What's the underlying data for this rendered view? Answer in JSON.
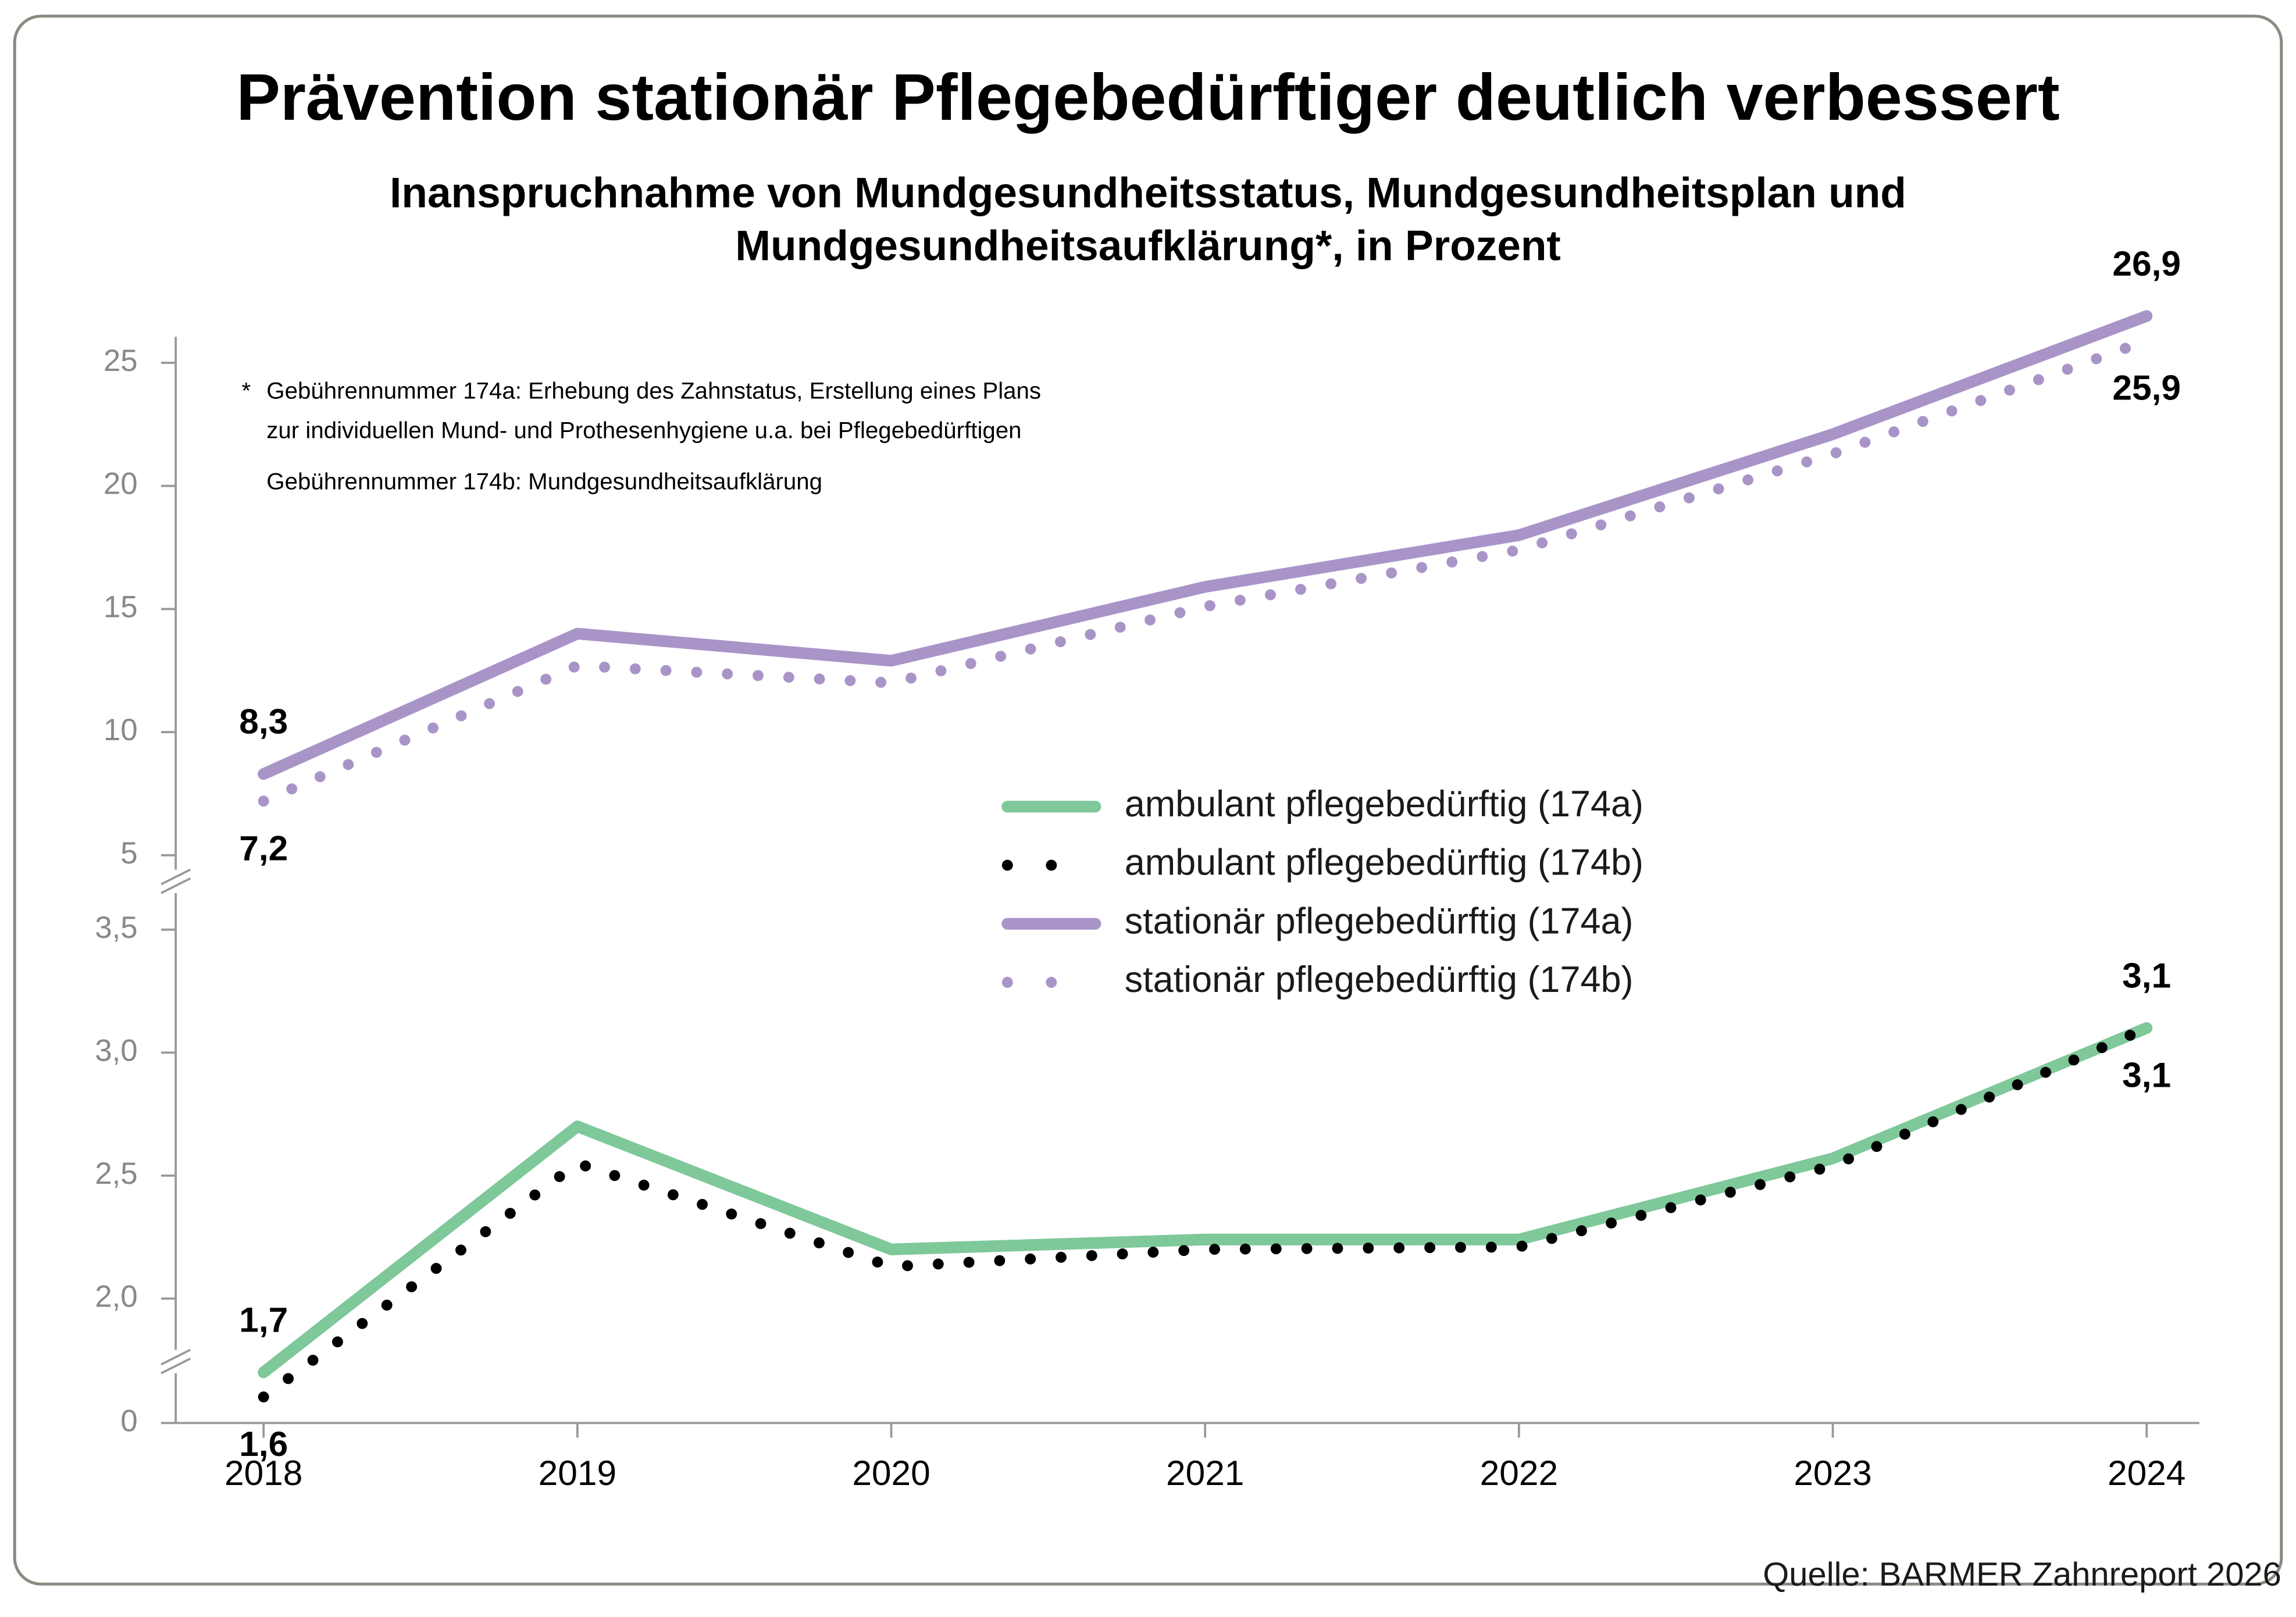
{
  "chart_data": {
    "type": "line",
    "title": "Prävention stationär Pflegebedürftiger deutlich verbessert",
    "subtitle": [
      "Inanspruchnahme von Mundgesundheitsstatus, Mundgesundheitsplan und",
      "Mundgesundheitsaufklärung*, in Prozent"
    ],
    "footnotes": [
      "*",
      "Gebührennummer 174a: Erhebung des Zahnstatus, Erstellung eines Plans",
      "zur individuellen Mund- und Prothesenhygiene u.a. bei Pflegebedürftigen",
      "Gebührennummer 174b: Mundgesundheitsaufklärung"
    ],
    "source": "Quelle: BARMER Zahnreport 2026",
    "categories": [
      "2018",
      "2019",
      "2020",
      "2021",
      "2022",
      "2023",
      "2024"
    ],
    "legend": "center",
    "panels": [
      {
        "ylim": [
          4,
          26
        ],
        "yticks": [
          5,
          10,
          15,
          20,
          25
        ],
        "series": [
          {
            "name": "stationär pflegebedürftig (174a)",
            "color": "#a994c8",
            "style": "solid",
            "values": [
              8.3,
              14.0,
              12.9,
              15.9,
              18.0,
              22.1,
              26.9
            ],
            "value_labels": [
              "8,3",
              null,
              null,
              null,
              null,
              null,
              "26,9"
            ]
          },
          {
            "name": "stationär pflegebedürftig (174b)",
            "color": "#a994c8",
            "style": "dotted",
            "values": [
              7.2,
              12.7,
              12.0,
              15.1,
              17.4,
              21.3,
              25.9
            ],
            "value_labels": [
              "7,2",
              null,
              null,
              null,
              null,
              null,
              "25,9"
            ]
          }
        ]
      },
      {
        "ylim": [
          1.5,
          3.5
        ],
        "yticks": [
          0,
          {
            "value": 2.0,
            "label": "2,0"
          },
          {
            "value": 2.5,
            "label": "2,5"
          },
          {
            "value": 3.0,
            "label": "3,0"
          },
          {
            "value": 3.5,
            "label": "3,5"
          }
        ],
        "series": [
          {
            "name": "ambulant pflegebedürftig (174a)",
            "color": "#7ec89a",
            "style": "solid",
            "values": [
              1.7,
              2.7,
              2.2,
              2.24,
              2.24,
              2.57,
              3.1
            ],
            "value_labels": [
              "1,7",
              null,
              null,
              null,
              null,
              null,
              "3,1"
            ]
          },
          {
            "name": "ambulant pflegebedürftig (174b)",
            "color": "#000000",
            "style": "dotted",
            "values": [
              1.6,
              2.55,
              2.13,
              2.2,
              2.21,
              2.54,
              3.1
            ],
            "value_labels": [
              "1,6",
              null,
              null,
              null,
              null,
              null,
              "3,1"
            ]
          }
        ]
      }
    ]
  }
}
